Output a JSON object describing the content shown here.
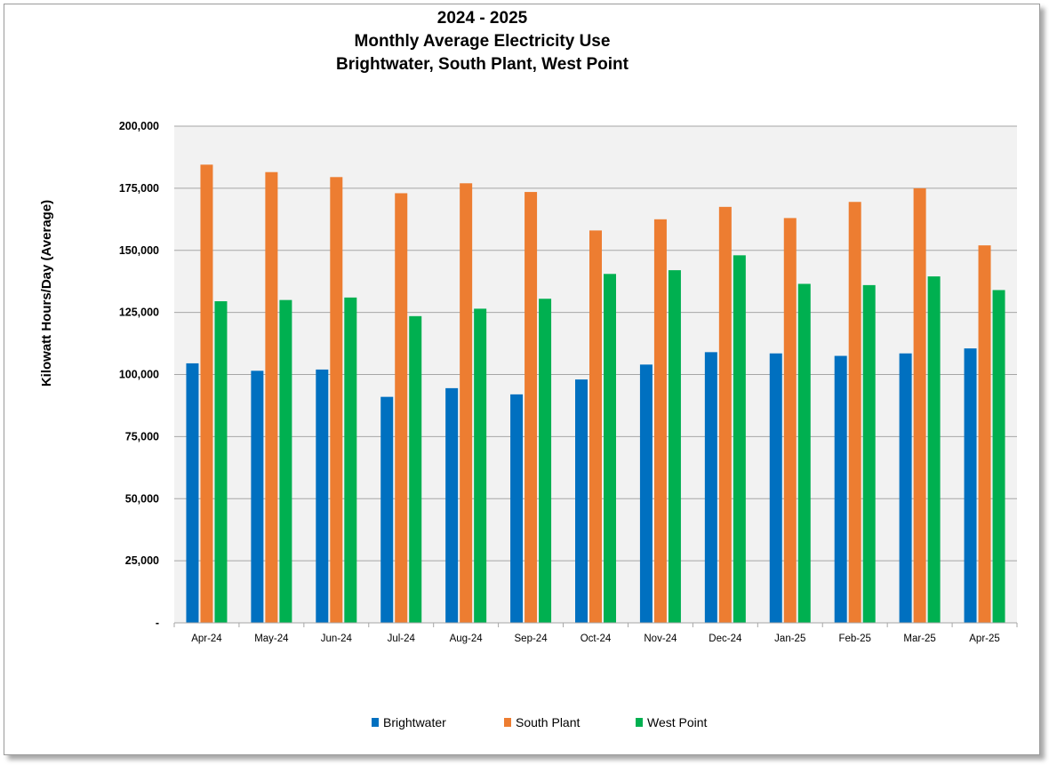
{
  "chart_data": {
    "type": "bar",
    "title_lines": [
      "2024 - 2025",
      "Monthly Average Electricity Use",
      "Brightwater, South Plant, West Point"
    ],
    "ylabel": "Kilowatt Hours/Day (Average)",
    "xlabel": "",
    "ylim": [
      0,
      200000
    ],
    "y_ticks": [
      0,
      25000,
      50000,
      75000,
      100000,
      125000,
      150000,
      175000,
      200000
    ],
    "y_tick_labels": [
      "-",
      "25,000",
      "50,000",
      "75,000",
      "100,000",
      "125,000",
      "150,000",
      "175,000",
      "200,000"
    ],
    "grid": true,
    "legend_position": "bottom",
    "categories": [
      "Apr-24",
      "May-24",
      "Jun-24",
      "Jul-24",
      "Aug-24",
      "Sep-24",
      "Oct-24",
      "Nov-24",
      "Dec-24",
      "Jan-25",
      "Feb-25",
      "Mar-25",
      "Apr-25"
    ],
    "series": [
      {
        "name": "Brightwater",
        "color": "#0070c0",
        "values": [
          104500,
          101500,
          102000,
          91000,
          94500,
          92000,
          98000,
          104000,
          109000,
          108500,
          107500,
          108500,
          110500
        ]
      },
      {
        "name": "South Plant",
        "color": "#ed7d31",
        "values": [
          184500,
          181500,
          179500,
          173000,
          177000,
          173500,
          158000,
          162500,
          167500,
          163000,
          169500,
          175000,
          152000
        ]
      },
      {
        "name": "West Point",
        "color": "#00b050",
        "values": [
          129500,
          130000,
          131000,
          123500,
          126500,
          130500,
          140500,
          142000,
          148000,
          136500,
          136000,
          139500,
          134000
        ]
      }
    ]
  }
}
